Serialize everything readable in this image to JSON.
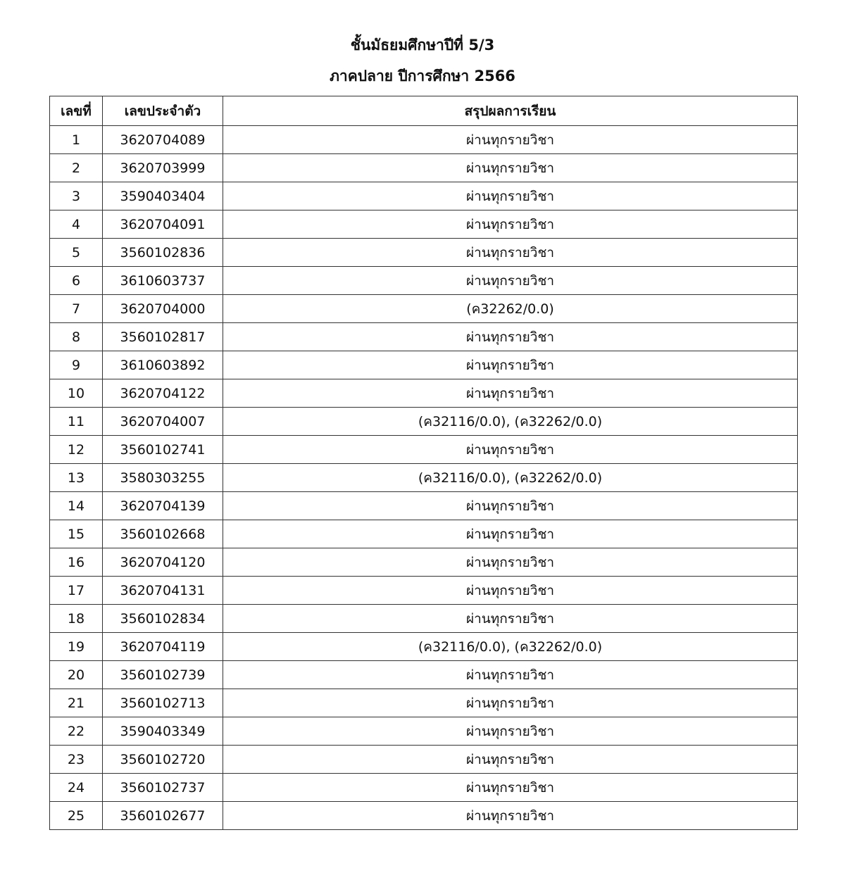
{
  "document": {
    "title_line1": "ชั้นมัธยมศึกษาปีที่ 5/3",
    "title_line2": "ภาคปลาย ปีการศึกษา 2566"
  },
  "table": {
    "headers": [
      "เลขที่",
      "เลขประจำตัว",
      "สรุปผลการเรียน"
    ],
    "rows": [
      [
        "1",
        "3620704089",
        "ผ่านทุกรายวิชา"
      ],
      [
        "2",
        "3620703999",
        "ผ่านทุกรายวิชา"
      ],
      [
        "3",
        "3590403404",
        "ผ่านทุกรายวิชา"
      ],
      [
        "4",
        "3620704091",
        "ผ่านทุกรายวิชา"
      ],
      [
        "5",
        "3560102836",
        "ผ่านทุกรายวิชา"
      ],
      [
        "6",
        "3610603737",
        "ผ่านทุกรายวิชา"
      ],
      [
        "7",
        "3620704000",
        "(ค32262/0.0)"
      ],
      [
        "8",
        "3560102817",
        "ผ่านทุกรายวิชา"
      ],
      [
        "9",
        "3610603892",
        "ผ่านทุกรายวิชา"
      ],
      [
        "10",
        "3620704122",
        "ผ่านทุกรายวิชา"
      ],
      [
        "11",
        "3620704007",
        "(ค32116/0.0), (ค32262/0.0)"
      ],
      [
        "12",
        "3560102741",
        "ผ่านทุกรายวิชา"
      ],
      [
        "13",
        "3580303255",
        "(ค32116/0.0), (ค32262/0.0)"
      ],
      [
        "14",
        "3620704139",
        "ผ่านทุกรายวิชา"
      ],
      [
        "15",
        "3560102668",
        "ผ่านทุกรายวิชา"
      ],
      [
        "16",
        "3620704120",
        "ผ่านทุกรายวิชา"
      ],
      [
        "17",
        "3620704131",
        "ผ่านทุกรายวิชา"
      ],
      [
        "18",
        "3560102834",
        "ผ่านทุกรายวิชา"
      ],
      [
        "19",
        "3620704119",
        "(ค32116/0.0), (ค32262/0.0)"
      ],
      [
        "20",
        "3560102739",
        "ผ่านทุกรายวิชา"
      ],
      [
        "21",
        "3560102713",
        "ผ่านทุกรายวิชา"
      ],
      [
        "22",
        "3590403349",
        "ผ่านทุกรายวิชา"
      ],
      [
        "23",
        "3560102720",
        "ผ่านทุกรายวิชา"
      ],
      [
        "24",
        "3560102737",
        "ผ่านทุกรายวิชา"
      ],
      [
        "25",
        "3560102677",
        "ผ่านทุกรายวิชา"
      ]
    ]
  }
}
